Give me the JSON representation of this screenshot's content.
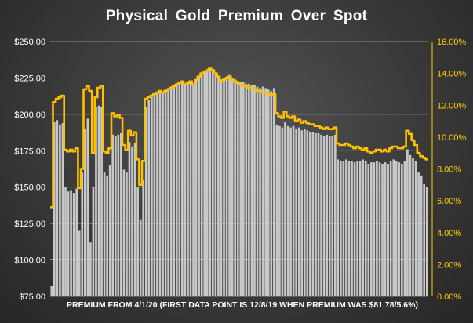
{
  "chart_data": {
    "type": "bar",
    "title": "Physical Gold Premium Over Spot",
    "xlabel": "PREMIUM FROM 4/1/20 (FIRST DATA POINT IS 12/8/19 WHEN PREMIUM WAS $81.78/5.6%)",
    "ylabel": "",
    "ylabel_right": "",
    "ylim": [
      75,
      250
    ],
    "ylim_right": [
      0,
      16
    ],
    "y_ticks": [
      "$75.00",
      "$100.00",
      "$125.00",
      "$150.00",
      "$175.00",
      "$200.00",
      "$225.00",
      "$250.00"
    ],
    "y_ticks_right": [
      "0.00%",
      "2.00%",
      "4.00%",
      "6.00%",
      "8.00%",
      "10.00%",
      "12.00%",
      "14.00%",
      "16.00%"
    ],
    "grid": true,
    "legend": "none",
    "colors": {
      "bars": "#c8c8c8",
      "line": "#ffc000",
      "background": "#3c3c3c"
    },
    "series": [
      {
        "type": "bar",
        "axis": "left",
        "values": [
          82,
          195,
          196,
          193,
          194,
          150,
          147,
          148,
          146,
          149,
          120,
          160,
          190,
          197,
          112,
          150,
          205,
          206,
          205,
          160,
          158,
          165,
          186,
          185,
          186,
          187,
          162,
          160,
          181,
          178,
          180,
          150,
          128,
          155,
          205,
          210,
          212,
          214,
          215,
          216,
          215,
          217,
          218,
          219,
          220,
          221,
          222,
          223,
          221,
          222,
          223,
          220,
          224,
          226,
          228,
          229,
          230,
          231,
          230,
          228,
          226,
          224,
          225,
          226,
          227,
          225,
          224,
          223,
          222,
          222,
          221,
          221,
          220,
          220,
          219,
          218,
          219,
          218,
          217,
          216,
          218,
          193,
          192,
          191,
          195,
          192,
          191,
          192,
          190,
          191,
          189,
          190,
          189,
          188,
          188,
          187,
          187,
          186,
          185,
          186,
          185,
          185,
          186,
          169,
          168,
          168,
          169,
          168,
          168,
          167,
          168,
          168,
          169,
          168,
          166,
          167,
          167,
          168,
          167,
          166,
          167,
          166,
          168,
          169,
          168,
          167,
          166,
          168,
          176,
          172,
          170,
          168,
          160,
          158,
          152,
          150
        ]
      },
      {
        "type": "line",
        "axis": "right",
        "values": [
          5.6,
          12.2,
          12.4,
          12.5,
          12.6,
          9.2,
          9.1,
          9.2,
          9.1,
          9.3,
          6.8,
          8.0,
          13.0,
          13.2,
          12.9,
          9.0,
          12.5,
          13.1,
          13.2,
          9.1,
          9.0,
          9.3,
          11.5,
          11.3,
          11.4,
          11.2,
          9.5,
          9.2,
          10.4,
          10.1,
          10.3,
          8.6,
          7.0,
          8.5,
          12.4,
          12.5,
          12.6,
          12.7,
          12.8,
          12.9,
          12.8,
          12.9,
          13.0,
          13.1,
          13.2,
          13.3,
          13.4,
          13.5,
          13.3,
          13.4,
          13.5,
          13.3,
          13.6,
          13.8,
          14.0,
          14.1,
          14.2,
          14.3,
          14.2,
          14.0,
          13.8,
          13.5,
          13.6,
          13.7,
          13.8,
          13.6,
          13.5,
          13.4,
          13.3,
          13.2,
          13.2,
          13.1,
          13.1,
          13.0,
          12.9,
          12.9,
          12.8,
          12.8,
          12.7,
          12.6,
          12.7,
          11.5,
          11.3,
          11.2,
          11.6,
          11.3,
          11.2,
          11.3,
          11.0,
          11.1,
          10.9,
          11.0,
          10.9,
          10.8,
          10.8,
          10.7,
          10.7,
          10.6,
          10.5,
          10.6,
          10.5,
          10.5,
          10.6,
          9.6,
          9.5,
          9.5,
          9.6,
          9.5,
          9.4,
          9.3,
          9.4,
          9.3,
          9.2,
          9.3,
          9.1,
          9.0,
          9.1,
          9.2,
          9.2,
          9.1,
          9.2,
          9.1,
          9.3,
          9.4,
          9.4,
          9.3,
          9.3,
          9.4,
          10.4,
          10.2,
          9.8,
          9.5,
          9.0,
          8.8,
          8.7,
          8.6
        ]
      }
    ]
  }
}
